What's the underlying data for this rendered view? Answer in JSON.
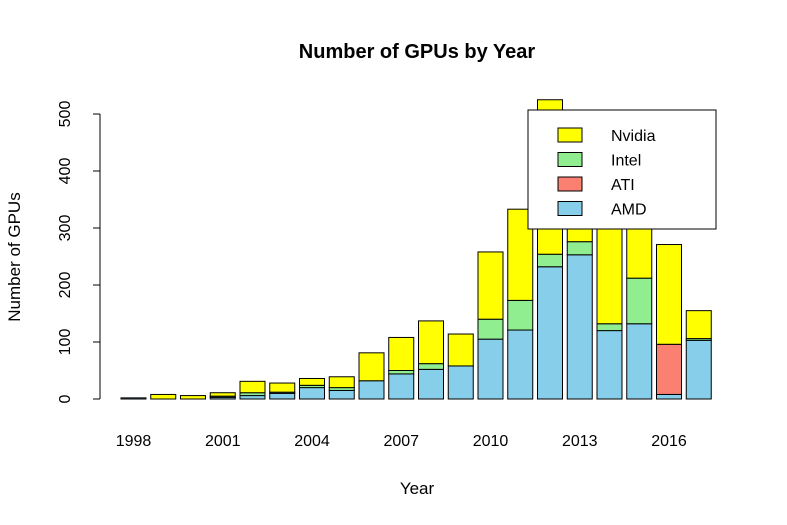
{
  "chart_data": {
    "type": "bar",
    "stacked": true,
    "title": "Number of GPUs by Year",
    "xlabel": "Year",
    "ylabel": "Number of GPUs",
    "ylim": [
      0,
      520
    ],
    "yticks": [
      0,
      100,
      200,
      300,
      400,
      500
    ],
    "categories": [
      "1998",
      "1999",
      "2000",
      "2001",
      "2002",
      "2003",
      "2004",
      "2005",
      "2006",
      "2007",
      "2008",
      "2009",
      "2010",
      "2011",
      "2012",
      "2013",
      "2014",
      "2015",
      "2016",
      "2017"
    ],
    "x_tick_labels": [
      "1998",
      "2001",
      "2004",
      "2007",
      "2010",
      "2013",
      "2016"
    ],
    "series": [
      {
        "name": "AMD",
        "color": "#87CEEB",
        "values": [
          2,
          0,
          0,
          3,
          6,
          10,
          20,
          15,
          32,
          44,
          52,
          58,
          105,
          121,
          232,
          253,
          120,
          132,
          8,
          103
        ]
      },
      {
        "name": "ATI",
        "color": "#FA8072",
        "values": [
          0,
          0,
          0,
          0,
          0,
          0,
          0,
          0,
          0,
          0,
          0,
          0,
          0,
          0,
          0,
          0,
          0,
          0,
          88,
          0
        ]
      },
      {
        "name": "Intel",
        "color": "#90EE90",
        "values": [
          0,
          0,
          0,
          2,
          5,
          2,
          4,
          5,
          0,
          6,
          10,
          0,
          35,
          52,
          22,
          23,
          12,
          80,
          0,
          3
        ]
      },
      {
        "name": "Nvidia",
        "color": "#FFFF00",
        "values": [
          0,
          8,
          6,
          6,
          20,
          16,
          12,
          19,
          49,
          58,
          75,
          56,
          118,
          160,
          271,
          39,
          238,
          89,
          175,
          49
        ]
      }
    ],
    "legend": {
      "position": "top-right",
      "order": [
        "Nvidia",
        "Intel",
        "ATI",
        "AMD"
      ]
    },
    "grid": false
  }
}
